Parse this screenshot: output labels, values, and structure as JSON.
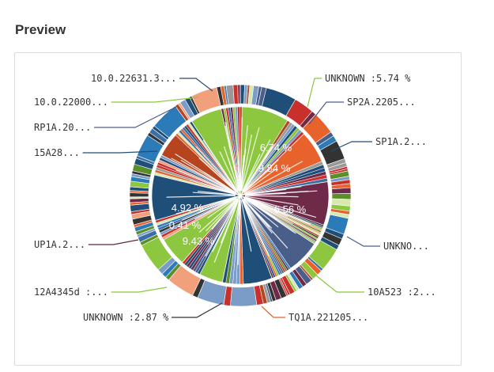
{
  "preview": {
    "heading": "Preview"
  },
  "chart_data": {
    "type": "pie",
    "title": "",
    "callouts": [
      {
        "label": "10.0.22631.3...",
        "side": "left",
        "color": "#2b4a78"
      },
      {
        "label": "10.0.22000...",
        "side": "left",
        "color": "#8dc63f"
      },
      {
        "label": "RP1A.20...",
        "side": "left",
        "color": "#4a5e8a"
      },
      {
        "label": "15A28...",
        "side": "left",
        "color": "#1f4e79"
      },
      {
        "label": "UP1A.2...",
        "side": "left",
        "color": "#5a2a3a"
      },
      {
        "label": "12A4345d :...",
        "side": "left",
        "color": "#8dc63f"
      },
      {
        "label": "UNKNOWN :2.87 %",
        "side": "left",
        "color": "#333333"
      },
      {
        "label": "UNKNOWN :5.74 %",
        "side": "right",
        "color": "#8dc63f"
      },
      {
        "label": "SP2A.2205...",
        "side": "right",
        "color": "#4a5e8a"
      },
      {
        "label": "SP1A.2...",
        "side": "right",
        "color": "#1f4e79"
      },
      {
        "label": "UNKNO...",
        "side": "right",
        "color": "#4a5e8a"
      },
      {
        "label": "10A523 :2...",
        "side": "right",
        "color": "#8dc63f"
      },
      {
        "label": "TQ1A.221205...",
        "side": "right",
        "color": "#e8622c"
      }
    ],
    "inner_labels": [
      "9.84 %",
      "6.56 %",
      "4.92 %",
      "9.43 %",
      "0.41 %",
      "6.74 %"
    ],
    "inner_values": [
      {
        "name": "green-right",
        "value": 9.84,
        "color": "#8dc63f"
      },
      {
        "name": "orange",
        "value": 6.74,
        "color": "#e8622c"
      },
      {
        "name": "maroon",
        "value": 9.0,
        "color": "#6e2a48"
      },
      {
        "name": "slate",
        "value": 7.0,
        "color": "#4a5e8a"
      },
      {
        "name": "navy-left",
        "value": 6.0,
        "color": "#1f4e79"
      },
      {
        "name": "green-left",
        "value": 4.92,
        "color": "#8dc63f"
      },
      {
        "name": "green-lower",
        "value": 6.0,
        "color": "#8dc63f"
      },
      {
        "name": "navy-bottom",
        "value": 9.43,
        "color": "#1f4e79"
      },
      {
        "name": "rust",
        "value": 5.0,
        "color": "#b5441f"
      },
      {
        "name": "green-right2",
        "value": 6.56,
        "color": "#8dc63f"
      }
    ],
    "palette": [
      "#8dc63f",
      "#1f4e79",
      "#4a5e8a",
      "#e8622c",
      "#6e2a48",
      "#2b7bb9",
      "#c9302c",
      "#7a9cc6",
      "#b5441f",
      "#999999",
      "#3a6ea5",
      "#d9e8b0",
      "#f2a07b",
      "#333333",
      "#5b8f2a"
    ]
  }
}
